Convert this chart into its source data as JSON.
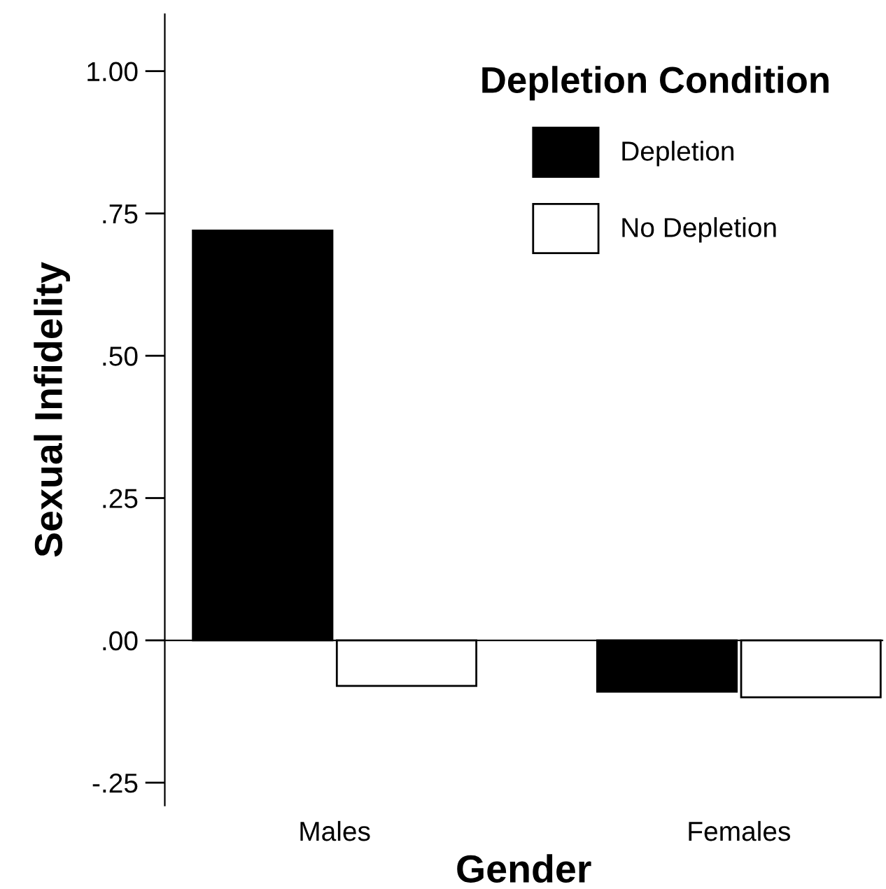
{
  "chart_data": {
    "type": "bar",
    "xlabel": "Gender",
    "ylabel": "Sexual Infidelity",
    "legend_title": "Depletion Condition",
    "categories": [
      "Males",
      "Females"
    ],
    "series": [
      {
        "name": "Depletion",
        "color": "#000000",
        "values": [
          0.72,
          -0.09
        ]
      },
      {
        "name": "No Depletion",
        "color": "#ffffff",
        "values": [
          -0.08,
          -0.1
        ]
      }
    ],
    "ylim": [
      -0.29,
      1.1
    ],
    "yticks": [
      {
        "value": -0.25,
        "label": "-.25"
      },
      {
        "value": 0,
        "label": ".00"
      },
      {
        "value": 0.25,
        "label": ".25"
      },
      {
        "value": 0.5,
        "label": ".50"
      },
      {
        "value": 0.75,
        "label": ".75"
      },
      {
        "value": 1.0,
        "label": "1.00"
      }
    ],
    "legend": "top right"
  }
}
